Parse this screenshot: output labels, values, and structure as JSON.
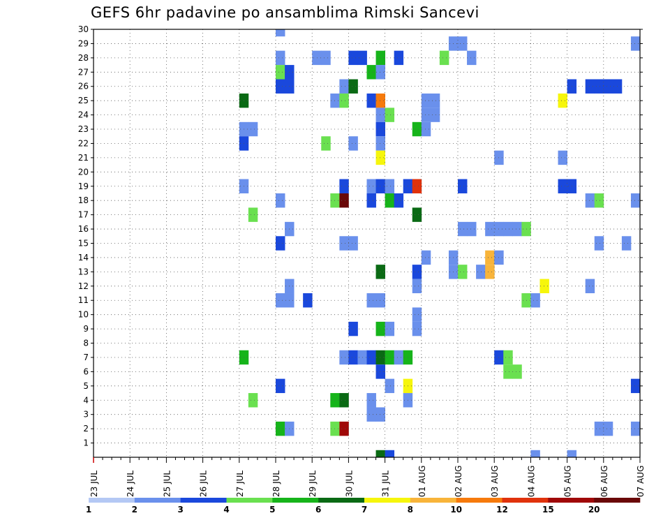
{
  "chart_data": {
    "type": "heatmap",
    "title": "GEFS 6hr padavine po ansamblima Rimski Sancevi",
    "xlabel": "",
    "ylabel": "",
    "x_tick_labels": [
      "23 JUL",
      "24 JUL",
      "25 JUL",
      "26 JUL",
      "27 JUL",
      "28 JUL",
      "29 JUL",
      "30 JUL",
      "31 JUL",
      "01 AUG",
      "02 AUG",
      "03 AUG",
      "04 AUG",
      "05 AUG",
      "06 AUG",
      "07 AUG"
    ],
    "y_tick_labels": [
      "1",
      "2",
      "3",
      "4",
      "5",
      "6",
      "7",
      "8",
      "9",
      "10",
      "11",
      "12",
      "13",
      "14",
      "15",
      "16",
      "17",
      "18",
      "19",
      "20",
      "21",
      "22",
      "23",
      "24",
      "25",
      "26",
      "27",
      "28",
      "29",
      "30"
    ],
    "x_step_hours": 6,
    "x_steps_total": 60,
    "y_range": [
      0,
      30
    ],
    "grid": true,
    "legend_position": "bottom",
    "legend_labels": [
      "1",
      "2",
      "3",
      "4",
      "5",
      "6",
      "7",
      "8",
      "10",
      "12",
      "15",
      "20"
    ],
    "levels": [
      1,
      2,
      3,
      4,
      5,
      6,
      7,
      8,
      10,
      12,
      15,
      20
    ],
    "colors": [
      "#b4c8f4",
      "#6a90ec",
      "#1a48dc",
      "#6ae050",
      "#16b41a",
      "#0a6a14",
      "#f6f60c",
      "#f8b43a",
      "#f67a0c",
      "#e0320c",
      "#a00808",
      "#6a0808"
    ],
    "cells": [
      [
        20,
        30,
        1
      ],
      [
        39,
        29,
        1
      ],
      [
        40,
        29,
        1
      ],
      [
        59,
        29,
        1
      ],
      [
        20,
        28,
        1
      ],
      [
        24,
        28,
        1
      ],
      [
        25,
        28,
        1
      ],
      [
        28,
        28,
        2
      ],
      [
        29,
        28,
        2
      ],
      [
        31,
        28,
        4
      ],
      [
        33,
        28,
        2
      ],
      [
        38,
        28,
        3
      ],
      [
        41,
        28,
        1
      ],
      [
        20,
        27,
        3
      ],
      [
        21,
        27,
        2
      ],
      [
        30,
        27,
        4
      ],
      [
        31,
        27,
        1
      ],
      [
        20,
        26,
        2
      ],
      [
        21,
        26,
        2
      ],
      [
        27,
        26,
        1
      ],
      [
        28,
        26,
        5
      ],
      [
        52,
        26,
        2
      ],
      [
        54,
        26,
        2
      ],
      [
        55,
        26,
        2
      ],
      [
        56,
        26,
        2
      ],
      [
        57,
        26,
        2
      ],
      [
        16,
        25,
        5
      ],
      [
        26,
        25,
        1
      ],
      [
        27,
        25,
        3
      ],
      [
        30,
        25,
        2
      ],
      [
        31,
        25,
        8
      ],
      [
        36,
        25,
        1
      ],
      [
        37,
        25,
        1
      ],
      [
        51,
        25,
        6
      ],
      [
        31,
        24,
        1
      ],
      [
        32,
        24,
        3
      ],
      [
        36,
        24,
        1
      ],
      [
        37,
        24,
        1
      ],
      [
        16,
        23,
        1
      ],
      [
        17,
        23,
        1
      ],
      [
        31,
        23,
        2
      ],
      [
        35,
        23,
        4
      ],
      [
        36,
        23,
        1
      ],
      [
        16,
        22,
        2
      ],
      [
        25,
        22,
        3
      ],
      [
        28,
        22,
        1
      ],
      [
        31,
        22,
        1
      ],
      [
        31,
        21,
        6
      ],
      [
        44,
        21,
        1
      ],
      [
        51,
        21,
        1
      ],
      [
        16,
        19,
        1
      ],
      [
        27,
        19,
        2
      ],
      [
        30,
        19,
        1
      ],
      [
        31,
        19,
        2
      ],
      [
        32,
        19,
        1
      ],
      [
        34,
        19,
        2
      ],
      [
        35,
        19,
        9
      ],
      [
        40,
        19,
        2
      ],
      [
        51,
        19,
        2
      ],
      [
        52,
        19,
        2
      ],
      [
        20,
        18,
        1
      ],
      [
        26,
        18,
        3
      ],
      [
        27,
        18,
        11
      ],
      [
        30,
        18,
        2
      ],
      [
        32,
        18,
        4
      ],
      [
        33,
        18,
        2
      ],
      [
        54,
        18,
        1
      ],
      [
        55,
        18,
        3
      ],
      [
        59,
        18,
        1
      ],
      [
        17,
        17,
        3
      ],
      [
        35,
        17,
        5
      ],
      [
        21,
        16,
        1
      ],
      [
        40,
        16,
        1
      ],
      [
        41,
        16,
        1
      ],
      [
        43,
        16,
        1
      ],
      [
        44,
        16,
        1
      ],
      [
        45,
        16,
        1
      ],
      [
        46,
        16,
        1
      ],
      [
        47,
        16,
        3
      ],
      [
        20,
        15,
        2
      ],
      [
        27,
        15,
        1
      ],
      [
        28,
        15,
        1
      ],
      [
        55,
        15,
        1
      ],
      [
        58,
        15,
        1
      ],
      [
        36,
        14,
        1
      ],
      [
        39,
        14,
        1
      ],
      [
        43,
        14,
        7
      ],
      [
        44,
        14,
        1
      ],
      [
        31,
        13,
        5
      ],
      [
        35,
        13,
        2
      ],
      [
        39,
        13,
        1
      ],
      [
        40,
        13,
        3
      ],
      [
        42,
        13,
        1
      ],
      [
        43,
        13,
        7
      ],
      [
        21,
        12,
        1
      ],
      [
        35,
        12,
        1
      ],
      [
        49,
        12,
        6
      ],
      [
        54,
        12,
        1
      ],
      [
        20,
        11,
        1
      ],
      [
        21,
        11,
        1
      ],
      [
        23,
        11,
        2
      ],
      [
        30,
        11,
        1
      ],
      [
        31,
        11,
        1
      ],
      [
        47,
        11,
        3
      ],
      [
        48,
        11,
        1
      ],
      [
        35,
        10,
        1
      ],
      [
        28,
        9,
        2
      ],
      [
        31,
        9,
        4
      ],
      [
        32,
        9,
        1
      ],
      [
        35,
        9,
        1
      ],
      [
        16,
        7,
        4
      ],
      [
        27,
        7,
        1
      ],
      [
        28,
        7,
        2
      ],
      [
        29,
        7,
        1
      ],
      [
        30,
        7,
        2
      ],
      [
        31,
        7,
        5
      ],
      [
        32,
        7,
        4
      ],
      [
        33,
        7,
        1
      ],
      [
        34,
        7,
        4
      ],
      [
        44,
        7,
        2
      ],
      [
        45,
        7,
        3
      ],
      [
        31,
        6,
        2
      ],
      [
        45,
        6,
        3
      ],
      [
        46,
        6,
        3
      ],
      [
        20,
        5,
        2
      ],
      [
        32,
        5,
        1
      ],
      [
        34,
        5,
        6
      ],
      [
        59,
        5,
        2
      ],
      [
        17,
        4,
        3
      ],
      [
        26,
        4,
        4
      ],
      [
        27,
        4,
        5
      ],
      [
        30,
        4,
        1
      ],
      [
        34,
        4,
        1
      ],
      [
        30,
        3,
        1
      ],
      [
        31,
        3,
        1
      ],
      [
        20,
        2,
        4
      ],
      [
        21,
        2,
        1
      ],
      [
        26,
        2,
        3
      ],
      [
        27,
        2,
        10
      ],
      [
        55,
        2,
        1
      ],
      [
        56,
        2,
        1
      ],
      [
        59,
        2,
        1
      ],
      [
        31,
        0,
        5
      ],
      [
        32,
        0,
        2
      ],
      [
        48,
        0,
        1
      ],
      [
        52,
        0,
        1
      ]
    ]
  }
}
